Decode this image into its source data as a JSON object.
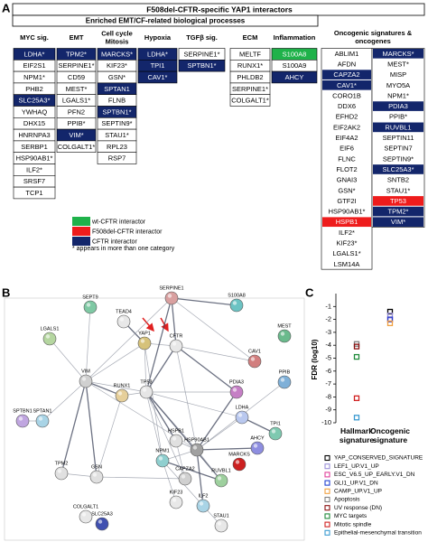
{
  "panel_labels": [
    "A",
    "B",
    "C"
  ],
  "panel_a": {
    "title": "F508del-CFTR-specific YAP1 interactors",
    "subtitle": "Enriched EMT/CF-related biological processes",
    "legend": [
      {
        "key": "wt",
        "text": "wt-CFTR interactor",
        "color": "#1fb24a"
      },
      {
        "key": "f508",
        "text": "F508del-CFTR interactor",
        "color": "#ee1c1c"
      },
      {
        "key": "cftr",
        "text": "CFTR interactor",
        "color": "#13266b"
      }
    ],
    "note": "* appears in more than one category",
    "columns": [
      {
        "title": [
          "MYC sig."
        ],
        "cells": [
          {
            "text": "LDHA*",
            "mark": "cftr"
          },
          {
            "text": "EIF2S1"
          },
          {
            "text": "NPM1*"
          },
          {
            "text": "PHB2"
          },
          {
            "text": "SLC25A3*",
            "mark": "cftr"
          },
          {
            "text": "YWHAQ"
          },
          {
            "text": "DHX15"
          },
          {
            "text": "HNRNPA3"
          },
          {
            "text": "SERBP1"
          },
          {
            "text": "HSP90AB1*"
          },
          {
            "text": "ILF2*"
          },
          {
            "text": "SRSF7"
          },
          {
            "text": "TCP1"
          }
        ]
      },
      {
        "title": [
          "EMT"
        ],
        "cells": [
          {
            "text": "TPM2*",
            "mark": "cftr"
          },
          {
            "text": "SERPINE1*"
          },
          {
            "text": "CD59"
          },
          {
            "text": "MEST*"
          },
          {
            "text": "LGALS1*"
          },
          {
            "text": "PFN2"
          },
          {
            "text": "PPIB*"
          },
          {
            "text": "VIM*",
            "mark": "cftr"
          },
          {
            "text": "COLGALT1*"
          }
        ]
      },
      {
        "title": [
          "Cell cycle",
          "Mitosis"
        ],
        "cells": [
          {
            "text": "MARCKS*",
            "mark": "cftr"
          },
          {
            "text": "KIF23*"
          },
          {
            "text": "GSN*"
          },
          {
            "text": "SPTAN1",
            "mark": "cftr"
          },
          {
            "text": "FLNB"
          },
          {
            "text": "SPTBN1*",
            "mark": "cftr"
          },
          {
            "text": "SEPTIN9*"
          },
          {
            "text": "STAU1*"
          },
          {
            "text": "RPL23"
          },
          {
            "text": "RSP7"
          }
        ]
      },
      {
        "title": [
          "Hypoxia"
        ],
        "cells": [
          {
            "text": "LDHA*",
            "mark": "cftr"
          },
          {
            "text": "TPI1",
            "mark": "cftr"
          },
          {
            "text": "CAV1*",
            "mark": "cftr"
          }
        ]
      },
      {
        "title": [
          "TGFβ sig."
        ],
        "cells": [
          {
            "text": "SERPINE1*"
          },
          {
            "text": "SPTBN1*",
            "mark": "cftr"
          }
        ]
      },
      {
        "title": [
          "ECM"
        ],
        "cells": [
          {
            "text": "MELTF"
          },
          {
            "text": "RUNX1*"
          },
          {
            "text": "PHLDB2"
          },
          {
            "text": "SERPINE1*"
          },
          {
            "text": "COLGALT1*"
          }
        ]
      },
      {
        "title": [
          "Inflammation"
        ],
        "cells": [
          {
            "text": "S100A8",
            "mark": "wt"
          },
          {
            "text": "S100A9"
          },
          {
            "text": "AHCY",
            "mark": "cftr"
          }
        ]
      }
    ],
    "oncogenic": {
      "title": [
        "Oncogenic signatures &",
        "oncogenes"
      ],
      "columns": [
        [
          {
            "text": "ABLIM1"
          },
          {
            "text": "AFDN"
          },
          {
            "text": "CAPZA2",
            "mark": "cftr"
          },
          {
            "text": "CAV1*",
            "mark": "cftr"
          },
          {
            "text": "CORO1B"
          },
          {
            "text": "DDX6"
          },
          {
            "text": "EFHD2"
          },
          {
            "text": "EIF2AK2"
          },
          {
            "text": "EIF4A2"
          },
          {
            "text": "EIF6"
          },
          {
            "text": "FLNC"
          },
          {
            "text": "FLOT2"
          },
          {
            "text": "GNAI3"
          },
          {
            "text": "GSN*"
          },
          {
            "text": "GTF2I"
          },
          {
            "text": "HSP90AB1*"
          },
          {
            "text": "HSPB1",
            "mark": "f508"
          },
          {
            "text": "ILF2*"
          },
          {
            "text": "KIF23*"
          },
          {
            "text": "LGALS1*"
          },
          {
            "text": "LSM14A"
          }
        ],
        [
          {
            "text": "MARCKS*",
            "mark": "cftr"
          },
          {
            "text": "MEST*"
          },
          {
            "text": "MISP"
          },
          {
            "text": "MYO5A"
          },
          {
            "text": "NPM1*"
          },
          {
            "text": "PDIA3",
            "mark": "cftr"
          },
          {
            "text": "PPIB*"
          },
          {
            "text": "RUVBL1",
            "mark": "cftr"
          },
          {
            "text": "SEPTIN11"
          },
          {
            "text": "SEPTIN7"
          },
          {
            "text": "SEPTIN9*"
          },
          {
            "text": "SLC25A3*",
            "mark": "cftr"
          },
          {
            "text": "SNTB2"
          },
          {
            "text": "STAU1*"
          },
          {
            "text": "TP53",
            "mark": "f508"
          },
          {
            "text": "TPM2*",
            "mark": "cftr"
          },
          {
            "text": "VIM*",
            "mark": "cftr"
          }
        ]
      ]
    }
  },
  "panel_b": {
    "nodes": [
      {
        "label": "SEPT9",
        "color": "#7fc9a4"
      },
      {
        "label": "SERPINE1",
        "color": "#d9a0a0"
      },
      {
        "label": "S100A8",
        "color": "#6cc3c3"
      },
      {
        "label": "TEAD4",
        "color": "#e8e8e8"
      },
      {
        "label": "YAP1",
        "color": "#d6c27a"
      },
      {
        "label": "CFTR",
        "color": "#e8e8e8"
      },
      {
        "label": "MEST",
        "color": "#6aba8c"
      },
      {
        "label": "LGALS1",
        "color": "#b5d6a0"
      },
      {
        "label": "CAV1",
        "color": "#d27f7f"
      },
      {
        "label": "PPIB",
        "color": "#7fb0d8"
      },
      {
        "label": "PDIA3",
        "color": "#c57fc5"
      },
      {
        "label": "VIM",
        "color": "#d0d0d0"
      },
      {
        "label": "RUNX1",
        "color": "#e6cf9a"
      },
      {
        "label": "TP53",
        "color": "#e6e6e6"
      },
      {
        "label": "SPTBN1",
        "color": "#c0a6e0"
      },
      {
        "label": "SPTAN1",
        "color": "#a9d4e6"
      },
      {
        "label": "LDHA",
        "color": "#b9c8ef"
      },
      {
        "label": "TPI1",
        "color": "#7ec9b0"
      },
      {
        "label": "HSPB1",
        "color": "#e0e0e0"
      },
      {
        "label": "HSP90AB1",
        "color": "#a0a0a0"
      },
      {
        "label": "TPM2",
        "color": "#e0e0e0"
      },
      {
        "label": "GSN",
        "color": "#e0e0e0"
      },
      {
        "label": "NPM1",
        "color": "#8fcfcf"
      },
      {
        "label": "CAPZA2",
        "color": "#d0d0d0"
      },
      {
        "label": "MARCKS",
        "color": "#cc2020"
      },
      {
        "label": "AHCY",
        "color": "#8e8ee0"
      },
      {
        "label": "RUVBL1",
        "color": "#9ed09e"
      },
      {
        "label": "COLGALT1",
        "color": "#e8e8e8"
      },
      {
        "label": "KIF23",
        "color": "#e8e8e8"
      },
      {
        "label": "ILF2",
        "color": "#a9d4e6"
      },
      {
        "label": "SLC25A3",
        "color": "#4050b0"
      },
      {
        "label": "STAU1",
        "color": "#e8e8e8"
      }
    ]
  },
  "chart_data": {
    "type": "scatter",
    "ylabel": "FDR (log10)",
    "categories": [
      "Hallmark signature",
      "Oncogenic signature"
    ],
    "ylim": [
      -10,
      0
    ],
    "yticks": [
      -1,
      -2,
      -3,
      -4,
      -5,
      -6,
      -7,
      -8,
      -9,
      -10
    ],
    "series": [
      {
        "name": "YAP_CONSERVED_SIGNATURE",
        "color": "#000000",
        "values": [
          null,
          -1.4
        ]
      },
      {
        "name": "LEF1_UP.V1_UP",
        "color": "#9a8fd8",
        "values": [
          null,
          -1.7
        ]
      },
      {
        "name": "ESC_V6.5_UP_EARLY.V1_DN",
        "color": "#e0409a",
        "values": [
          null,
          -2.0
        ]
      },
      {
        "name": "GLI1_UP.V1_DN",
        "color": "#2040d0",
        "values": [
          null,
          -2.0
        ]
      },
      {
        "name": "CAMP_UP.V1_UP",
        "color": "#f0a040",
        "values": [
          null,
          -2.3
        ]
      },
      {
        "name": "Apoptosis",
        "color": "#808080",
        "values": [
          -3.9,
          null
        ]
      },
      {
        "name": "UV response (DN)",
        "color": "#8b1010",
        "values": [
          -4.1,
          null
        ]
      },
      {
        "name": "MYC targets",
        "color": "#1f8a3a",
        "values": [
          -4.9,
          null
        ]
      },
      {
        "name": "Mitotic spindle",
        "color": "#d02020",
        "values": [
          -8.1,
          null
        ]
      },
      {
        "name": "Epithelial-mesenchymal transition",
        "color": "#3a9ad0",
        "values": [
          -9.6,
          null
        ]
      }
    ]
  }
}
